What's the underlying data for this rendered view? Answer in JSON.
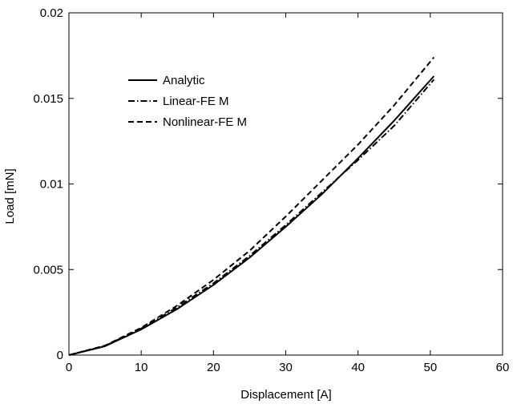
{
  "chart_data": {
    "type": "line",
    "title": "",
    "xlabel": "Displacement [A]",
    "ylabel": "Load [mN]",
    "xlim": [
      0,
      60
    ],
    "ylim": [
      0,
      0.02
    ],
    "grid": false,
    "legend_position": "top-left",
    "x_ticks": [
      0,
      10,
      20,
      30,
      40,
      50,
      60
    ],
    "y_ticks": [
      0,
      0.005,
      0.01,
      0.015,
      0.02
    ],
    "x_tick_labels": [
      "0",
      "10",
      "20",
      "30",
      "40",
      "50",
      "60"
    ],
    "y_tick_labels": [
      "0",
      "0.005",
      "0.01",
      "0.015",
      "0.02"
    ],
    "x": [
      0,
      5,
      10,
      15,
      20,
      25,
      30,
      35,
      40,
      45,
      50.5
    ],
    "series": [
      {
        "name": "Analytic",
        "style": "solid",
        "values": [
          0,
          0.00052,
          0.0015,
          0.0027,
          0.0041,
          0.0057,
          0.0075,
          0.0094,
          0.0115,
          0.0137,
          0.0163
        ]
      },
      {
        "name": "Linear-FE M",
        "style": "dashdot",
        "values": [
          0,
          0.00054,
          0.00155,
          0.0028,
          0.0042,
          0.0058,
          0.0076,
          0.0095,
          0.0114,
          0.0134,
          0.0161
        ]
      },
      {
        "name": "Nonlinear-FE M",
        "style": "dashed",
        "values": [
          0,
          0.00056,
          0.0016,
          0.0029,
          0.0044,
          0.0061,
          0.0081,
          0.0102,
          0.0123,
          0.0146,
          0.0174
        ]
      }
    ]
  }
}
